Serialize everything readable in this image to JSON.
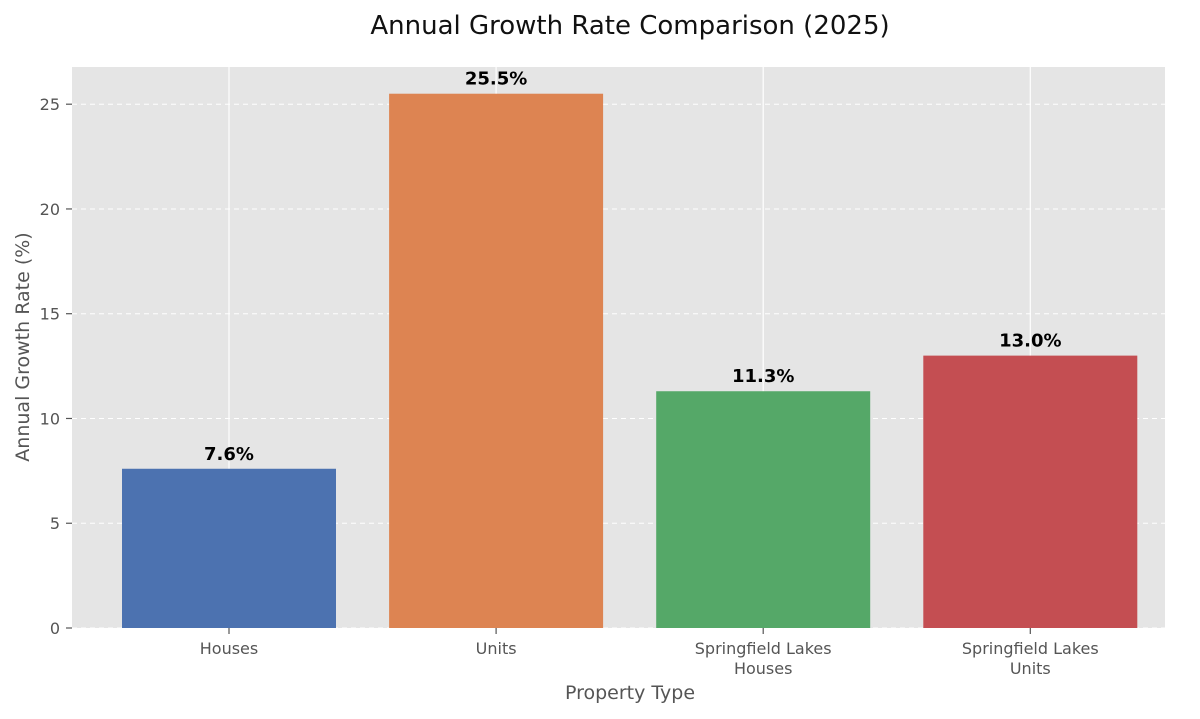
{
  "chart_data": {
    "type": "bar",
    "title": "Annual Growth Rate Comparison (2025)",
    "xlabel": "Property Type",
    "ylabel": "Annual Growth Rate (%)",
    "categories": [
      [
        "Houses"
      ],
      [
        "Units"
      ],
      [
        "Springfield Lakes",
        "Houses"
      ],
      [
        "Springfield Lakes",
        "Units"
      ]
    ],
    "values": [
      7.6,
      25.5,
      11.3,
      13.0
    ],
    "value_labels": [
      "7.6%",
      "25.5%",
      "11.3%",
      "13.0%"
    ],
    "colors": [
      "#4c72b0",
      "#dd8452",
      "#55a868",
      "#c44e52"
    ],
    "yticks": [
      0,
      5,
      10,
      15,
      20,
      25
    ],
    "ylim": [
      0,
      26.775
    ],
    "grid": true,
    "background_color": "#e5e5e5",
    "grid_color": "#ffffff"
  }
}
